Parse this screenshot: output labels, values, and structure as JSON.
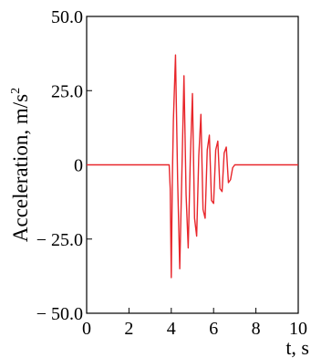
{
  "chart_data": {
    "type": "line",
    "xlabel": "t, s",
    "ylabel_text": "Acceleration, m/s",
    "ylabel_sup": "2",
    "xlim": [
      0,
      10
    ],
    "ylim": [
      -50,
      50
    ],
    "xticks": [
      0,
      2,
      4,
      6,
      8,
      10
    ],
    "xtick_labels": [
      "0",
      "2",
      "4",
      "6",
      "8",
      "10"
    ],
    "yticks": [
      50,
      25,
      0,
      -25,
      -50
    ],
    "ytick_labels": [
      "50.0",
      "25.0",
      "0",
      "− 25.0",
      "− 50.0"
    ],
    "grid": false,
    "line_color": "#e8262b",
    "series": [
      {
        "x": [
          0,
          3.9,
          3.95,
          4.0,
          4.05,
          4.1,
          4.2,
          4.3,
          4.4,
          4.5,
          4.6,
          4.7,
          4.8,
          4.9,
          5.0,
          5.1,
          5.2,
          5.3,
          5.4,
          5.5,
          5.6,
          5.7,
          5.8,
          5.9,
          6.0,
          6.1,
          6.2,
          6.3,
          6.4,
          6.5,
          6.6,
          6.7,
          6.8,
          6.9,
          7.0,
          7.1,
          7.2,
          10
        ],
        "y": [
          0,
          0,
          -8,
          -38,
          -5,
          15,
          37,
          -5,
          -35,
          -3,
          30,
          -10,
          -28,
          2,
          24,
          -18,
          -24,
          3,
          17,
          -15,
          -18,
          5,
          10,
          -12,
          -13,
          5,
          8,
          -8,
          -9,
          4,
          6,
          -6,
          -5,
          -1,
          0,
          0,
          0,
          0
        ]
      }
    ]
  }
}
